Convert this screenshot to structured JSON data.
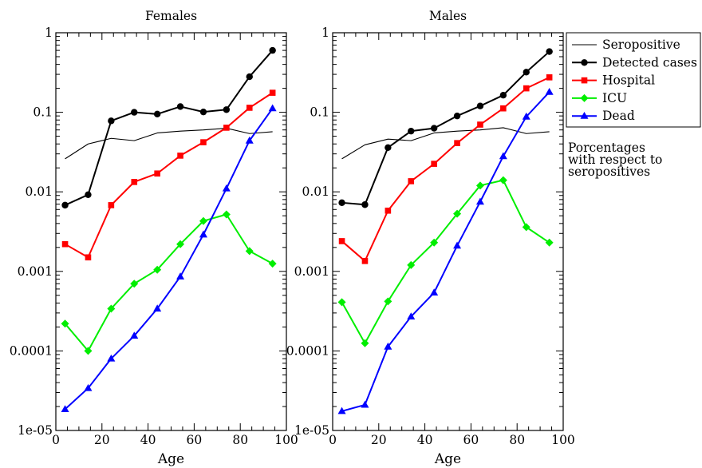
{
  "chart_data": [
    {
      "type": "line",
      "title": "Females",
      "xlabel": "Age",
      "ylabel": "",
      "xlim": [
        0,
        100
      ],
      "ylim": [
        1e-05,
        1
      ],
      "yscale": "log",
      "xticks": [
        "0",
        "20",
        "40",
        "60",
        "80",
        "100"
      ],
      "yticks": [
        "1e-05",
        "0.0001",
        "0.001",
        "0.01",
        "0.1",
        "1"
      ],
      "x": [
        4,
        14,
        24,
        34,
        44,
        54,
        64,
        74,
        84,
        94
      ],
      "series": [
        {
          "name": "Seropositive",
          "color": "#000000",
          "marker": "none",
          "values": [
            0.026,
            0.04,
            0.047,
            0.044,
            0.055,
            0.058,
            0.06,
            0.063,
            0.054,
            0.057
          ]
        },
        {
          "name": "Detected cases",
          "color": "#000000",
          "marker": "circle",
          "values": [
            0.0068,
            0.0092,
            0.078,
            0.1,
            0.095,
            0.118,
            0.101,
            0.108,
            0.28,
            0.6
          ]
        },
        {
          "name": "Hospital",
          "color": "#ff0000",
          "marker": "square",
          "values": [
            0.0022,
            0.0015,
            0.0068,
            0.0133,
            0.017,
            0.0285,
            0.042,
            0.064,
            0.114,
            0.176
          ]
        },
        {
          "name": "ICU",
          "color": "#00ee00",
          "marker": "diamond",
          "values": [
            0.00022,
            0.0001,
            0.00034,
            0.0007,
            0.00105,
            0.0022,
            0.0043,
            0.0052,
            0.0018,
            0.00125
          ]
        },
        {
          "name": "Dead",
          "color": "#0000ff",
          "marker": "triangle",
          "values": [
            1.85e-05,
            3.4e-05,
            8e-05,
            0.000155,
            0.00034,
            0.00086,
            0.0029,
            0.011,
            0.044,
            0.112
          ]
        }
      ]
    },
    {
      "type": "line",
      "title": "Males",
      "xlabel": "Age",
      "ylabel": "",
      "xlim": [
        0,
        100
      ],
      "ylim": [
        1e-05,
        1
      ],
      "yscale": "log",
      "xticks": [
        "0",
        "20",
        "40",
        "60",
        "80",
        "100"
      ],
      "yticks": [
        "1e-05",
        "0.0001",
        "0.001",
        "0.01",
        "0.1",
        "1"
      ],
      "x": [
        4,
        14,
        24,
        34,
        44,
        54,
        64,
        74,
        84,
        94
      ],
      "series": [
        {
          "name": "Seropositive",
          "color": "#000000",
          "marker": "none",
          "values": [
            0.026,
            0.039,
            0.046,
            0.044,
            0.055,
            0.058,
            0.06,
            0.064,
            0.054,
            0.057
          ]
        },
        {
          "name": "Detected cases",
          "color": "#000000",
          "marker": "circle",
          "values": [
            0.0073,
            0.0069,
            0.036,
            0.058,
            0.063,
            0.09,
            0.12,
            0.164,
            0.32,
            0.58
          ]
        },
        {
          "name": "Hospital",
          "color": "#ff0000",
          "marker": "square",
          "values": [
            0.0024,
            0.00135,
            0.0058,
            0.0136,
            0.0225,
            0.041,
            0.07,
            0.112,
            0.2,
            0.275
          ]
        },
        {
          "name": "ICU",
          "color": "#00ee00",
          "marker": "diamond",
          "values": [
            0.00041,
            0.000125,
            0.00042,
            0.0012,
            0.0023,
            0.0053,
            0.012,
            0.014,
            0.0036,
            0.0023
          ]
        },
        {
          "name": "Dead",
          "color": "#0000ff",
          "marker": "triangle",
          "values": [
            1.75e-05,
            2.1e-05,
            0.000113,
            0.00027,
            0.00054,
            0.0021,
            0.0075,
            0.028,
            0.088,
            0.18
          ]
        }
      ]
    }
  ],
  "legend": {
    "position": "top-right",
    "items": [
      "Seropositive",
      "Detected cases",
      "Hospital",
      "ICU",
      "Dead"
    ]
  },
  "note": {
    "lines": [
      "Porcentages",
      "with respect to",
      "seropositives"
    ]
  }
}
